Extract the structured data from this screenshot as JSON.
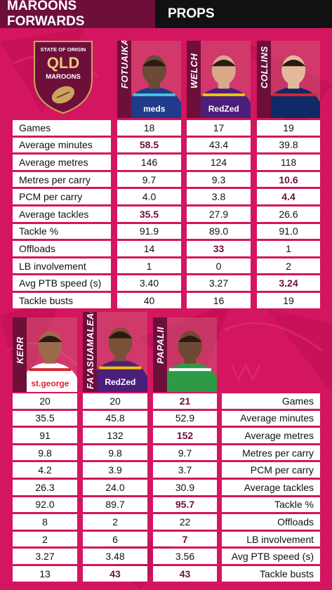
{
  "header": {
    "left_title": "MAROONS FORWARDS",
    "right_title": "PROPS"
  },
  "logo": {
    "line1": "STATE OF ORIGIN",
    "line2": "QLD",
    "line3": "MAROONS"
  },
  "colors": {
    "background": "#d4155f",
    "maroon": "#6e0f3a",
    "header_dark": "#111111"
  },
  "stat_labels": [
    "Games",
    "Average minutes",
    "Average metres",
    "Metres per carry",
    "PCM per carry",
    "Average tackles",
    "Tackle %",
    "Offloads",
    "LB involvement",
    "Avg PTB speed (s)",
    "Tackle busts"
  ],
  "top_players": [
    {
      "name": "FOTUAIKA",
      "values": [
        "18",
        "58.5",
        "146",
        "9.7",
        "4.0",
        "35.5",
        "91.9",
        "14",
        "1",
        "3.40",
        "40"
      ],
      "highlight": [
        false,
        true,
        false,
        false,
        false,
        true,
        false,
        false,
        false,
        false,
        false
      ]
    },
    {
      "name": "WELCH",
      "values": [
        "17",
        "43.4",
        "124",
        "9.3",
        "3.8",
        "27.9",
        "89.0",
        "33",
        "0",
        "3.27",
        "16"
      ],
      "highlight": [
        false,
        false,
        false,
        false,
        false,
        false,
        false,
        true,
        false,
        false,
        false
      ]
    },
    {
      "name": "COLLINS",
      "values": [
        "19",
        "39.8",
        "118",
        "10.6",
        "4.4",
        "26.6",
        "91.0",
        "1",
        "2",
        "3.24",
        "19"
      ],
      "highlight": [
        false,
        false,
        false,
        true,
        true,
        false,
        false,
        false,
        false,
        true,
        false
      ]
    }
  ],
  "bottom_players": [
    {
      "name": "KERR",
      "values": [
        "20",
        "35.5",
        "91",
        "9.8",
        "4.2",
        "26.3",
        "92.0",
        "8",
        "2",
        "3.27",
        "13"
      ],
      "highlight": [
        false,
        false,
        false,
        false,
        false,
        false,
        false,
        false,
        false,
        false,
        false
      ]
    },
    {
      "name": "FA'ASUAMALEAUI",
      "values": [
        "20",
        "45.8",
        "132",
        "9.8",
        "3.9",
        "24.0",
        "89.7",
        "2",
        "6",
        "3.48",
        "43"
      ],
      "highlight": [
        false,
        false,
        false,
        false,
        false,
        false,
        false,
        false,
        false,
        false,
        true
      ]
    },
    {
      "name": "PAPALII",
      "values": [
        "21",
        "52.9",
        "152",
        "9.7",
        "3.7",
        "30.9",
        "95.7",
        "22",
        "7",
        "3.56",
        "43"
      ],
      "highlight": [
        true,
        false,
        true,
        false,
        false,
        false,
        true,
        false,
        true,
        false,
        true
      ]
    }
  ],
  "sponsors": {
    "fotuaika": "meds",
    "welch": "RedZed",
    "collins": "",
    "kerr": "st.george",
    "faasuamaleaui": "RedZed",
    "papalii": ""
  }
}
